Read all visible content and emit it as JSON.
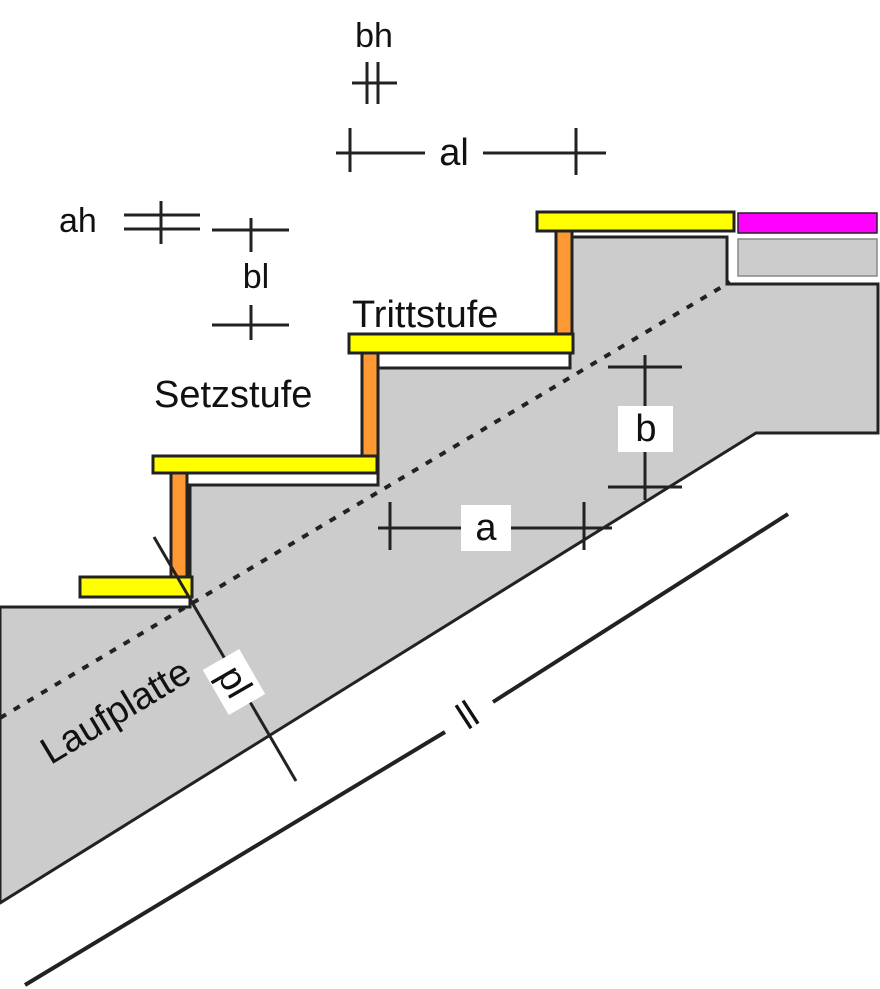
{
  "labels": {
    "bh": "bh",
    "al": "al",
    "ah": "ah",
    "bl": "bl",
    "trittstufe": "Trittstufe",
    "setzstufe": "Setzstufe",
    "a": "a",
    "b": "b",
    "laufplatte": "Laufplatte",
    "pl": "pl",
    "ll": "ll"
  },
  "colors": {
    "concrete": "#cccccc",
    "tread": "#ffff00",
    "riser": "#ff9933",
    "finish": "#ff00ff",
    "finish_base": "#cccccc",
    "line": "#222222"
  }
}
